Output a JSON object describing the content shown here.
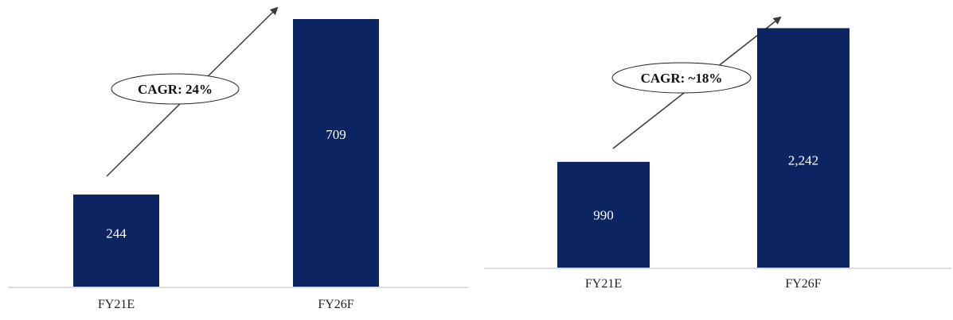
{
  "chart_data": [
    {
      "type": "bar",
      "categories": [
        "FY21E",
        "FY26F"
      ],
      "values": [
        244,
        709
      ],
      "value_labels": [
        "244",
        "709"
      ],
      "annotation": "CAGR: 24%",
      "title": "",
      "xlabel": "",
      "ylabel": "",
      "ylim": [
        0,
        730
      ],
      "grid": false,
      "bar_color": "#0c2461"
    },
    {
      "type": "bar",
      "categories": [
        "FY21E",
        "FY26F"
      ],
      "values": [
        990,
        2242
      ],
      "value_labels": [
        "990",
        "2,242"
      ],
      "annotation": "CAGR: ~18%",
      "title": "",
      "xlabel": "",
      "ylabel": "",
      "ylim": [
        0,
        2290
      ],
      "grid": false,
      "bar_color": "#0c2461"
    }
  ]
}
